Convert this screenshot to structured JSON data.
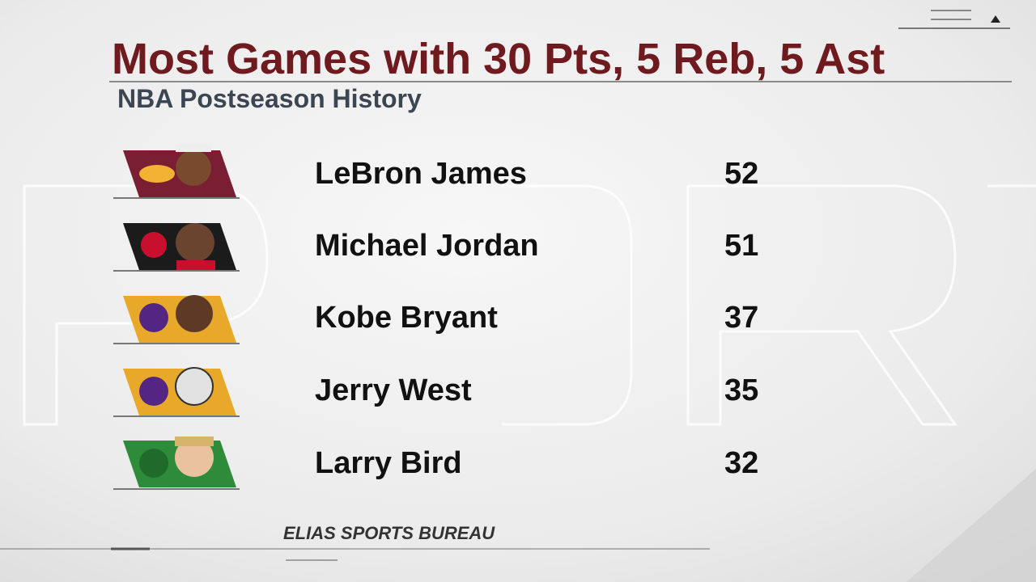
{
  "header": {
    "title": "Most Games with 30 Pts, 5 Reb, 5 Ast",
    "subtitle": "NBA Postseason History"
  },
  "table": {
    "rows": [
      [
        "LeBron James",
        "52"
      ],
      [
        "Michael Jordan",
        "51"
      ],
      [
        "Kobe Bryant",
        "37"
      ],
      [
        "Jerry West",
        "35"
      ],
      [
        "Larry Bird",
        "32"
      ]
    ]
  },
  "footer": {
    "source": "ELIAS SPORTS BUREAU"
  }
}
